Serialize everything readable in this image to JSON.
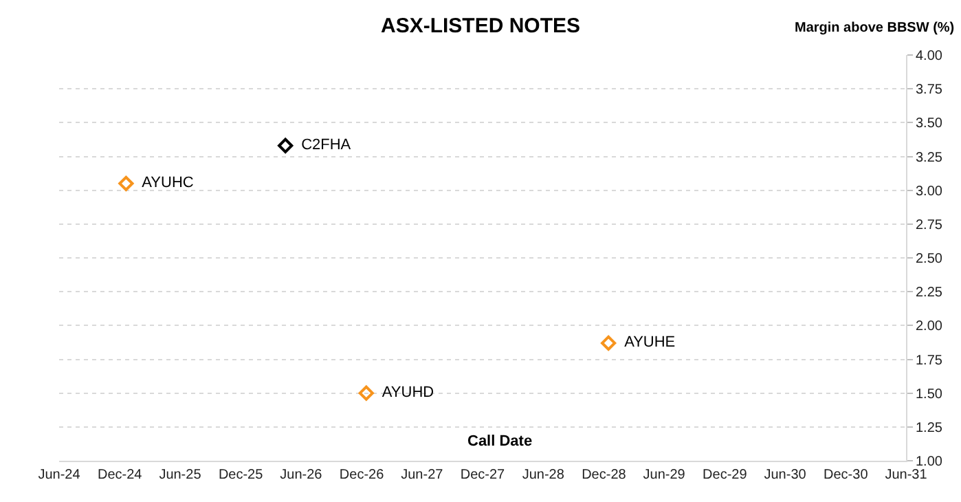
{
  "chart_data": {
    "type": "scatter",
    "title": "ASX-LISTED NOTES",
    "xlabel": "Call Date",
    "ylabel": "Margin above BBSW (%)",
    "series": [
      {
        "name": "AYUHC",
        "color": "#f7941d",
        "x": [
          "2024-12-20"
        ],
        "values": [
          3.05
        ]
      },
      {
        "name": "C2FHA",
        "color": "#000000",
        "x": [
          "2026-04-15"
        ],
        "values": [
          3.33
        ]
      },
      {
        "name": "AYUHD",
        "color": "#f7941d",
        "x": [
          "2026-12-15"
        ],
        "values": [
          1.5
        ]
      },
      {
        "name": "AYUHE",
        "color": "#f7941d",
        "x": [
          "2028-12-15"
        ],
        "values": [
          1.87
        ]
      }
    ],
    "marker": "diamond",
    "grid": "y",
    "legend": false,
    "xlim": [
      "2024-06-01",
      "2031-06-01"
    ],
    "xticks": [
      {
        "value": "2024-06-01",
        "label": "Jun-24"
      },
      {
        "value": "2024-12-01",
        "label": "Dec-24"
      },
      {
        "value": "2025-06-01",
        "label": "Jun-25"
      },
      {
        "value": "2025-12-01",
        "label": "Dec-25"
      },
      {
        "value": "2026-06-01",
        "label": "Jun-26"
      },
      {
        "value": "2026-12-01",
        "label": "Dec-26"
      },
      {
        "value": "2027-06-01",
        "label": "Jun-27"
      },
      {
        "value": "2027-12-01",
        "label": "Dec-27"
      },
      {
        "value": "2028-06-01",
        "label": "Jun-28"
      },
      {
        "value": "2028-12-01",
        "label": "Dec-28"
      },
      {
        "value": "2029-06-01",
        "label": "Jun-29"
      },
      {
        "value": "2029-12-01",
        "label": "Dec-29"
      },
      {
        "value": "2030-06-01",
        "label": "Jun-30"
      },
      {
        "value": "2030-12-01",
        "label": "Dec-30"
      },
      {
        "value": "2031-06-01",
        "label": "Jun-31"
      }
    ],
    "ylim": [
      1,
      4
    ],
    "yticks": [
      {
        "value": 1,
        "label": "1.00"
      },
      {
        "value": 1.25,
        "label": "1.25"
      },
      {
        "value": 1.5,
        "label": "1.50"
      },
      {
        "value": 1.75,
        "label": "1.75"
      },
      {
        "value": 2,
        "label": "2.00"
      },
      {
        "value": 2.25,
        "label": "2.25"
      },
      {
        "value": 2.5,
        "label": "2.50"
      },
      {
        "value": 2.75,
        "label": "2.75"
      },
      {
        "value": 3,
        "label": "3.00"
      },
      {
        "value": 3.25,
        "label": "3.25"
      },
      {
        "value": 3.5,
        "label": "3.50"
      },
      {
        "value": 3.75,
        "label": "3.75"
      },
      {
        "value": 4,
        "label": "4.00"
      }
    ]
  }
}
